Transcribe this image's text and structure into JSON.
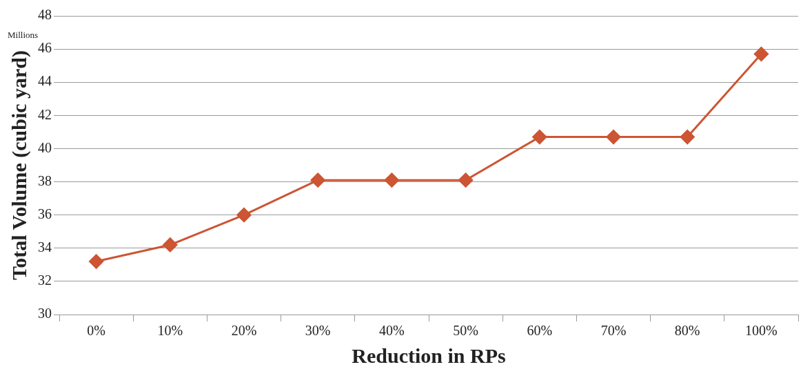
{
  "chart_data": {
    "type": "line",
    "xlabel": "Reduction in RPs",
    "ylabel": "Total Volume (cubic yard)",
    "annotations": [
      "Millions"
    ],
    "categories": [
      "0%",
      "10%",
      "20%",
      "30%",
      "40%",
      "50%",
      "60%",
      "70%",
      "80%",
      "100%"
    ],
    "series": [
      {
        "color": "#cc5533",
        "values": [
          33.2,
          34.2,
          36.0,
          38.1,
          38.1,
          38.1,
          40.7,
          40.7,
          40.7,
          45.7
        ]
      }
    ],
    "ylim": [
      30,
      48
    ],
    "yticks": [
      30,
      32,
      34,
      36,
      38,
      40,
      42,
      44,
      46,
      48
    ],
    "grid": "y",
    "legend": false,
    "marker": "diamond",
    "line_style": "solid"
  }
}
